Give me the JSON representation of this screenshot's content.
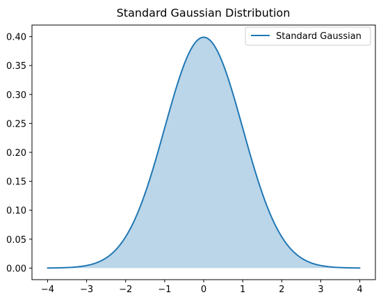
{
  "chart_data": {
    "type": "area",
    "title": "Standard Gaussian Distribution",
    "xlabel": "",
    "ylabel": "",
    "xlim": [
      -4.4,
      4.4
    ],
    "ylim": [
      -0.02,
      0.42
    ],
    "x_ticks": [
      -4,
      -3,
      -2,
      -1,
      0,
      1,
      2,
      3,
      4
    ],
    "x_tick_labels": [
      "−4",
      "−3",
      "−2",
      "−1",
      "0",
      "1",
      "2",
      "3",
      "4"
    ],
    "y_ticks": [
      0.0,
      0.05,
      0.1,
      0.15,
      0.2,
      0.25,
      0.3,
      0.35,
      0.4
    ],
    "y_tick_labels": [
      "0.00",
      "0.05",
      "0.10",
      "0.15",
      "0.20",
      "0.25",
      "0.30",
      "0.35",
      "0.40"
    ],
    "grid": false,
    "legend_position": "top-right",
    "series": [
      {
        "name": "Standard Gaussian",
        "color": "#1f77b4",
        "fill_color": "#1f77b4",
        "fill_opacity": 0.3,
        "x": [
          -4.0,
          -3.75,
          -3.5,
          -3.25,
          -3.0,
          -2.75,
          -2.5,
          -2.25,
          -2.0,
          -1.75,
          -1.5,
          -1.25,
          -1.0,
          -0.75,
          -0.5,
          -0.25,
          0.0,
          0.25,
          0.5,
          0.75,
          1.0,
          1.25,
          1.5,
          1.75,
          2.0,
          2.25,
          2.5,
          2.75,
          3.0,
          3.25,
          3.5,
          3.75,
          4.0
        ],
        "y": [
          0.0001,
          0.0004,
          0.0009,
          0.002,
          0.0044,
          0.0091,
          0.0175,
          0.0317,
          0.054,
          0.0863,
          0.1295,
          0.1826,
          0.242,
          0.3011,
          0.3521,
          0.3867,
          0.3989,
          0.3867,
          0.3521,
          0.3011,
          0.242,
          0.1826,
          0.1295,
          0.0863,
          0.054,
          0.0317,
          0.0175,
          0.0091,
          0.0044,
          0.002,
          0.0009,
          0.0004,
          0.0001
        ]
      }
    ]
  }
}
